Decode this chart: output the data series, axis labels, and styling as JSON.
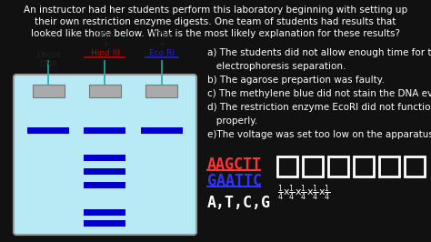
{
  "background_color": "#111111",
  "title_lines": [
    "An instructor had her students perform this laboratory beginning with setting up",
    "their own restriction enzyme digests. One team of students had results that",
    "looked like those below. What is the most likely explanation for these results?"
  ],
  "title_color": "#ffffff",
  "title_fontsize": 7.5,
  "gel_color": "#b8eaf5",
  "gel_border_color": "#999999",
  "lane_label_colors": [
    "#222222",
    "#cc0000",
    "#2222cc"
  ],
  "band_color": "#0000cc",
  "answer_color": "#ffffff",
  "answer_fontsize": 7.5,
  "answer_lines": [
    "a) The students did not allow enough time for the",
    "   electrophoresis separation.",
    "b) The agarose prepartion was faulty.",
    "c) The methylene blue did not stain the DNA evenly.",
    "d) The restriction enzyme EcoRI did not function",
    "   properly.",
    "e)The voltage was set too low on the apparatus."
  ],
  "seq_color1": "#ff3333",
  "seq_color2": "#3333ff",
  "bases_color": "#ffffff",
  "box_color": "#ffffff"
}
